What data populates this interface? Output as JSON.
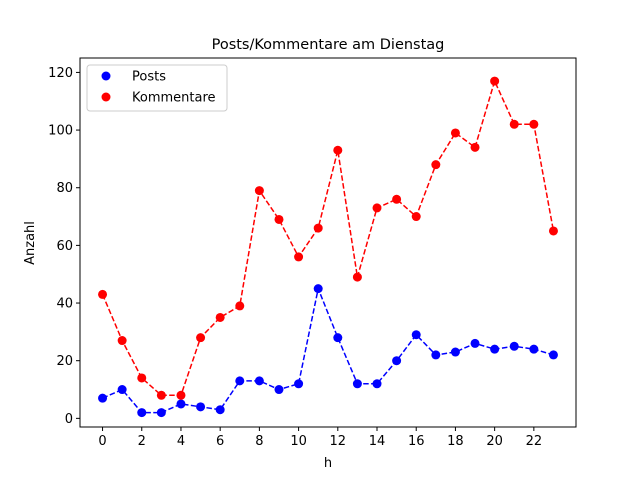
{
  "chart_data": {
    "type": "line",
    "title": "Posts/Kommentare am Dienstag",
    "xlabel": "h",
    "ylabel": "Anzahl",
    "x": [
      0,
      1,
      2,
      3,
      4,
      5,
      6,
      7,
      8,
      9,
      10,
      11,
      12,
      13,
      14,
      15,
      16,
      17,
      18,
      19,
      20,
      21,
      22,
      23
    ],
    "xticks": [
      0,
      2,
      4,
      6,
      8,
      10,
      12,
      14,
      16,
      18,
      20,
      22
    ],
    "yticks": [
      0,
      20,
      40,
      60,
      80,
      100,
      120
    ],
    "xlim": [
      -1.15,
      24.15
    ],
    "ylim": [
      -3,
      125
    ],
    "grid": false,
    "legend_position": "upper left",
    "series": [
      {
        "name": "Posts",
        "color": "#0000ff",
        "line_style": "dashed",
        "marker": "circle",
        "values": [
          7,
          10,
          2,
          2,
          5,
          4,
          3,
          13,
          13,
          10,
          12,
          45,
          28,
          12,
          12,
          20,
          29,
          22,
          23,
          26,
          24,
          25,
          24,
          22
        ]
      },
      {
        "name": "Kommentare",
        "color": "#ff0000",
        "line_style": "dashed",
        "marker": "circle",
        "values": [
          43,
          27,
          14,
          8,
          8,
          28,
          35,
          39,
          79,
          69,
          56,
          66,
          93,
          49,
          73,
          76,
          70,
          88,
          99,
          94,
          117,
          102,
          102,
          65
        ]
      }
    ]
  }
}
